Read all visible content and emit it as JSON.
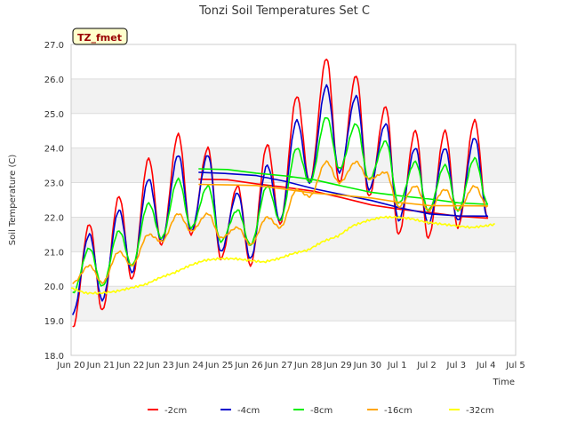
{
  "chart_data": {
    "type": "line",
    "title": "Tonzi Soil Temperatures Set C",
    "xlabel": "Time",
    "ylabel": "Soil Temperature (C)",
    "annotation": "TZ_fmet",
    "ylim": [
      18.0,
      27.0
    ],
    "yticks": [
      18.0,
      19.0,
      20.0,
      21.0,
      22.0,
      23.0,
      24.0,
      25.0,
      26.0,
      27.0
    ],
    "ytick_labels": [
      "18.0",
      "19.0",
      "20.0",
      "21.0",
      "22.0",
      "23.0",
      "24.0",
      "25.0",
      "26.0",
      "27.0"
    ],
    "xlim": [
      "Jun 20",
      "Jul 5"
    ],
    "xtick_labels": [
      "Jun 20",
      "Jun 21",
      "Jun 22",
      "Jun 23",
      "Jun 24",
      "Jun 25",
      "Jun 26",
      "Jun 27",
      "Jun 28",
      "Jun 29",
      "Jun 30",
      "Jul 1",
      "Jul 2",
      "Jul 3",
      "Jul 4",
      "Jul 5"
    ],
    "x_day_labels": [
      "Jun 20",
      "Jun 21",
      "Jun 22",
      "Jun 23",
      "Jun 24",
      "Jun 25",
      "Jun 26",
      "Jun 27",
      "Jun 28",
      "Jun 29",
      "Jun 30",
      "Jul 1",
      "Jul 2",
      "Jul 3",
      "Jul 4"
    ],
    "grid": true,
    "legend_position": "bottom",
    "series": [
      {
        "name": "-2cm",
        "color": "#ff0000",
        "mins": [
          18.8,
          19.3,
          20.2,
          21.2,
          21.5,
          20.8,
          20.6,
          21.8,
          23.0,
          23.0,
          22.6,
          21.5,
          21.4,
          21.7,
          22.0
        ],
        "maxs": [
          21.8,
          22.6,
          23.7,
          24.4,
          24.0,
          22.9,
          24.1,
          25.5,
          26.6,
          26.1,
          25.2,
          24.5,
          24.5,
          24.8
        ],
        "end": [
          4.3,
          23.1
        ]
      },
      {
        "name": "-4cm",
        "color": "#0000cc",
        "mins": [
          19.2,
          19.6,
          20.4,
          21.3,
          21.6,
          21.0,
          20.8,
          21.9,
          23.0,
          23.3,
          22.8,
          21.9,
          21.8,
          21.9,
          22.0
        ],
        "maxs": [
          21.5,
          22.2,
          23.1,
          23.8,
          23.8,
          22.7,
          23.5,
          24.8,
          25.8,
          25.5,
          24.7,
          24.0,
          24.0,
          24.3
        ],
        "end": [
          4.3,
          23.3
        ]
      },
      {
        "name": "-8cm",
        "color": "#00ee00",
        "mins": [
          19.8,
          20.0,
          20.6,
          21.4,
          21.7,
          21.3,
          21.2,
          21.9,
          23.0,
          23.4,
          23.1,
          22.4,
          22.2,
          22.2,
          22.4
        ],
        "maxs": [
          21.1,
          21.6,
          22.4,
          23.1,
          22.9,
          22.2,
          22.9,
          24.0,
          24.9,
          24.7,
          24.2,
          23.6,
          23.5,
          23.7
        ],
        "end": [
          4.3,
          23.4
        ]
      },
      {
        "name": "-16cm",
        "color": "#ffa500",
        "mins": [
          20.1,
          20.1,
          20.6,
          21.3,
          21.6,
          21.4,
          21.2,
          21.7,
          22.6,
          23.0,
          23.1,
          22.3,
          22.2,
          22.2,
          22.3
        ],
        "maxs": [
          20.6,
          21.0,
          21.5,
          22.1,
          22.1,
          21.7,
          22.0,
          22.8,
          23.6,
          23.6,
          23.3,
          22.9,
          22.8,
          22.9
        ],
        "end": [
          4.3,
          22.95
        ]
      },
      {
        "name": "-32cm",
        "color": "#ffff00",
        "trend": [
          [
            0.0,
            19.95
          ],
          [
            0.5,
            19.8
          ],
          [
            1.0,
            19.8
          ],
          [
            1.5,
            19.85
          ],
          [
            2.0,
            19.95
          ],
          [
            2.5,
            20.05
          ],
          [
            3.0,
            20.25
          ],
          [
            3.5,
            20.4
          ],
          [
            4.0,
            20.6
          ],
          [
            4.5,
            20.75
          ],
          [
            5.0,
            20.8
          ],
          [
            5.5,
            20.8
          ],
          [
            6.0,
            20.75
          ],
          [
            6.5,
            20.7
          ],
          [
            7.0,
            20.8
          ],
          [
            7.5,
            20.95
          ],
          [
            8.0,
            21.05
          ],
          [
            8.5,
            21.3
          ],
          [
            9.0,
            21.45
          ],
          [
            9.5,
            21.75
          ],
          [
            10.0,
            21.9
          ],
          [
            10.5,
            22.0
          ],
          [
            11.0,
            22.0
          ],
          [
            11.5,
            21.95
          ],
          [
            12.0,
            21.85
          ],
          [
            12.5,
            21.8
          ],
          [
            13.0,
            21.75
          ],
          [
            13.5,
            21.7
          ],
          [
            14.0,
            21.75
          ],
          [
            14.3,
            21.8
          ]
        ],
        "end": [
          14.3,
          21.8
        ]
      }
    ]
  }
}
